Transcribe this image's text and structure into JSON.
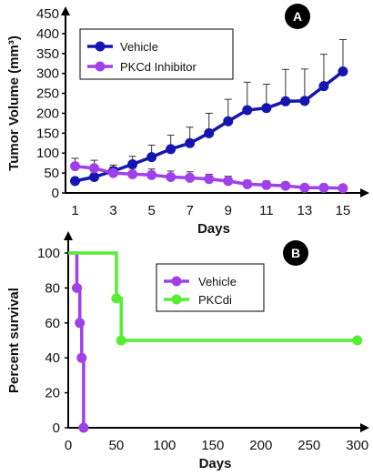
{
  "chart_data": [
    {
      "type": "line",
      "panel_label": "A",
      "xlabel": "Days",
      "ylabel": "Tumor Volume (mm³)",
      "xlim": [
        0.5,
        16
      ],
      "ylim": [
        0,
        450
      ],
      "xticks": [
        1,
        3,
        5,
        7,
        9,
        11,
        13,
        15
      ],
      "yticks": [
        0,
        50,
        100,
        150,
        200,
        250,
        300,
        350,
        400,
        450
      ],
      "legend_position": "top-left",
      "x": [
        1,
        2,
        3,
        4,
        5,
        6,
        7,
        8,
        9,
        10,
        11,
        12,
        13,
        14,
        15
      ],
      "series": [
        {
          "name": "Vehicle",
          "color": "#1515b0",
          "values": [
            30,
            40,
            55,
            72,
            90,
            110,
            125,
            150,
            180,
            208,
            213,
            230,
            231,
            268,
            305
          ],
          "error": [
            8,
            15,
            15,
            20,
            30,
            35,
            40,
            50,
            55,
            70,
            60,
            80,
            80,
            80,
            80
          ]
        },
        {
          "name": "PKCd Inhibitor",
          "color": "#a040e8",
          "values": [
            67,
            62,
            50,
            47,
            45,
            40,
            38,
            35,
            30,
            22,
            20,
            18,
            13,
            13,
            12
          ],
          "error": [
            20,
            20,
            15,
            15,
            15,
            15,
            15,
            12,
            12,
            10,
            10,
            8,
            8,
            5,
            4
          ]
        }
      ]
    },
    {
      "type": "line",
      "subtype": "step",
      "panel_label": "B",
      "xlabel": "Days",
      "ylabel": "Percent survival",
      "xlim": [
        0,
        305
      ],
      "ylim": [
        0,
        100
      ],
      "xticks": [
        0,
        50,
        100,
        150,
        200,
        250,
        300
      ],
      "yticks": [
        0,
        20,
        40,
        60,
        80,
        100
      ],
      "legend_position": "center",
      "series": [
        {
          "name": "Vehicle",
          "color": "#a040e8",
          "step_x": [
            0,
            9,
            9,
            12,
            12,
            14,
            14,
            16,
            16
          ],
          "step_y": [
            100,
            100,
            80,
            80,
            60,
            60,
            40,
            40,
            0
          ],
          "marker_x": [
            9,
            12,
            14,
            16
          ],
          "marker_y": [
            80,
            60,
            40,
            0
          ]
        },
        {
          "name": "PKCdi",
          "color": "#55ee33",
          "step_x": [
            0,
            50,
            50,
            55,
            55,
            300
          ],
          "step_y": [
            100,
            100,
            74,
            74,
            50,
            50
          ],
          "marker_x": [
            50,
            55,
            300
          ],
          "marker_y": [
            74,
            50,
            50
          ]
        }
      ]
    }
  ]
}
